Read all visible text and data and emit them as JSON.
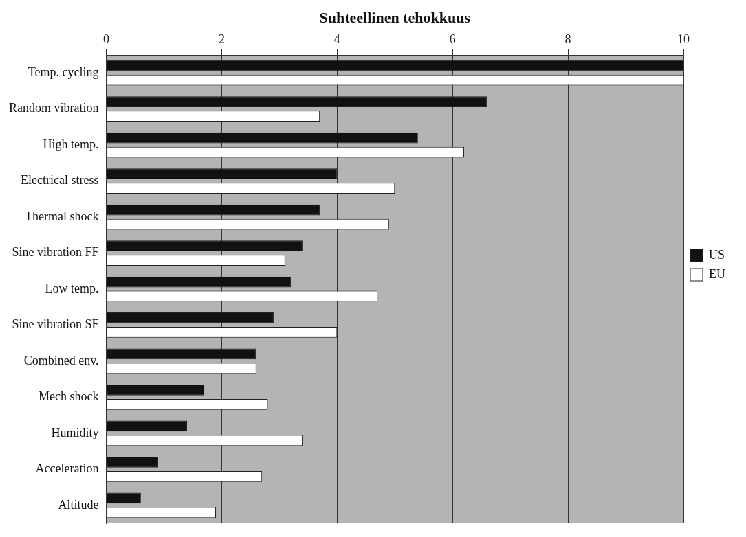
{
  "chart_data": {
    "type": "bar",
    "orientation": "horizontal",
    "xlabel": "Suhteellinen tehokkuus",
    "categories": [
      "Temp. cycling",
      "Random vibration",
      "High temp.",
      "Electrical stress",
      "Thermal shock",
      "Sine vibration FF",
      "Low temp.",
      "Sine vibration SF",
      "Combined env.",
      "Mech shock",
      "Humidity",
      "Acceleration",
      "Altitude"
    ],
    "series": [
      {
        "name": "US",
        "color": "#111111",
        "values": [
          10,
          6.6,
          5.4,
          4.0,
          3.7,
          3.4,
          3.2,
          2.9,
          2.6,
          1.7,
          1.4,
          0.9,
          0.6
        ]
      },
      {
        "name": "EU",
        "color": "#ffffff",
        "values": [
          10,
          3.7,
          6.2,
          5.0,
          4.9,
          3.1,
          4.7,
          4.0,
          2.6,
          2.8,
          3.4,
          2.7,
          1.9
        ]
      }
    ],
    "xlim": [
      0,
      10
    ],
    "xticks": [
      0,
      2,
      4,
      6,
      8,
      10
    ],
    "grid": "x",
    "legend": "right"
  }
}
